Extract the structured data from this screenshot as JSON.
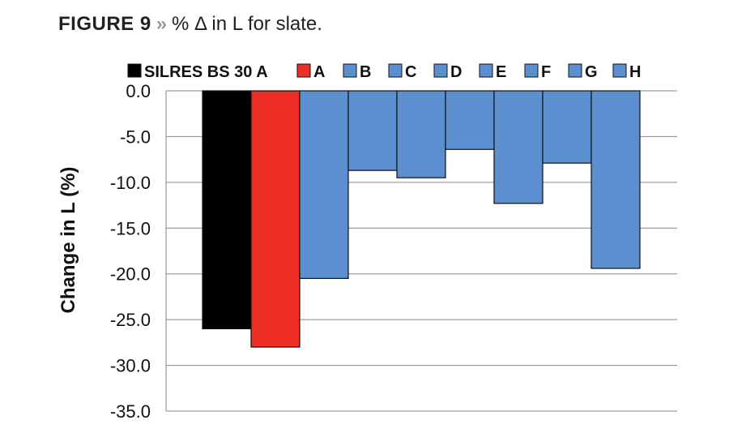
{
  "figure": {
    "label": "FIGURE 9",
    "separator": "»",
    "caption": "% Δ in L for slate."
  },
  "chart_data": {
    "type": "bar",
    "title": "% Δ in L for slate.",
    "xlabel": "",
    "ylabel": "Change in L (%)",
    "ylim": [
      -35,
      0
    ],
    "yticks": [
      0,
      -5,
      -10,
      -15,
      -20,
      -25,
      -30,
      -35
    ],
    "ytick_labels": [
      "0.0",
      "-5.0",
      "-10.0",
      "-15.0",
      "-20.0",
      "-25.0",
      "-30.0",
      "-35.0"
    ],
    "grid": true,
    "legend_position": "top",
    "categories": [
      "SILRES BS 30 A",
      "A",
      "B",
      "C",
      "D",
      "E",
      "F",
      "G",
      "H"
    ],
    "values": [
      -26.0,
      -28.0,
      -20.5,
      -8.7,
      -9.5,
      -6.4,
      -12.3,
      -7.9,
      -19.4
    ],
    "colors": [
      "#000000",
      "#ee2e24",
      "#5b8fcf",
      "#5b8fcf",
      "#5b8fcf",
      "#5b8fcf",
      "#5b8fcf",
      "#5b8fcf",
      "#5b8fcf"
    ]
  }
}
